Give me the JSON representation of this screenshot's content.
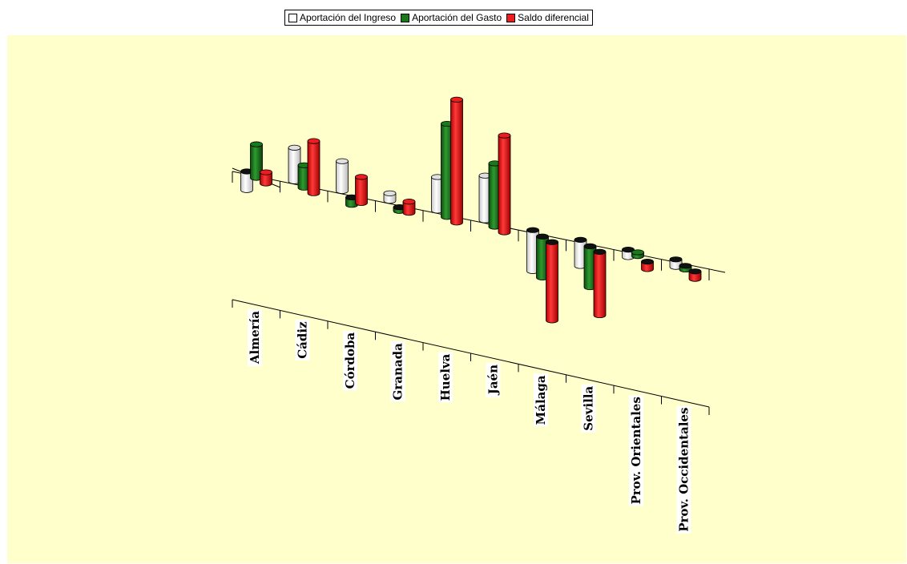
{
  "legend": {
    "items": [
      {
        "label": "Aportación del Ingreso",
        "color": "#e0e0e0"
      },
      {
        "label": "Aportación del Gasto",
        "color": "#1a7a1a"
      },
      {
        "label": "Saldo diferencial",
        "color": "#ee1c1c"
      }
    ]
  },
  "chart_data": {
    "type": "bar",
    "style": "3d-cylinder",
    "title": "",
    "xlabel": "",
    "ylabel": "",
    "legend_position": "top-center",
    "grid": false,
    "categories": [
      "Almería",
      "Cádiz",
      "Córdoba",
      "Granada",
      "Huelva",
      "Jaén",
      "Málaga",
      "Sevilla",
      "Prov. Orientales",
      "Prov. Occidentales"
    ],
    "series": [
      {
        "name": "Aportación del Ingreso",
        "color": "#e0e0e0",
        "values": [
          -2.5,
          4.5,
          4.0,
          1.0,
          4.5,
          6.0,
          -5.5,
          -3.5,
          -1.0,
          -1.0
        ]
      },
      {
        "name": "Aportación del Gasto",
        "color": "#1a7a1a",
        "values": [
          4.5,
          3.0,
          -1.0,
          -0.5,
          12.5,
          8.5,
          -5.5,
          -5.5,
          0.5,
          -0.5
        ]
      },
      {
        "name": "Saldo diferencial",
        "color": "#ee1c1c",
        "values": [
          1.5,
          7.0,
          3.5,
          1.5,
          16.5,
          13.0,
          -10.5,
          -8.5,
          -1.0,
          -1.0
        ]
      }
    ]
  }
}
